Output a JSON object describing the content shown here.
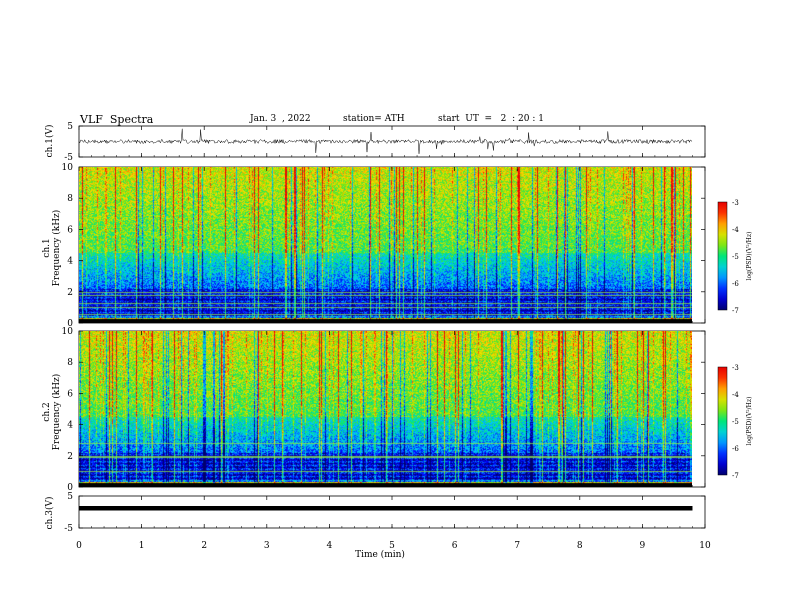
{
  "header": {
    "title": "VLF  Spectra",
    "date": "Jan. 3  , 2022",
    "station": "station= ATH",
    "start": "start  UT  =   2  : 20 : 1"
  },
  "chart_data": [
    {
      "name": "ch1-waveform",
      "type": "line",
      "ylabel": "ch.1(V)",
      "yticks": [
        "5",
        "-5"
      ],
      "ylim": [
        -5,
        5
      ]
    },
    {
      "name": "ch1-spectrogram",
      "type": "heatmap",
      "ylabel_line1": "ch.1",
      "ylabel_line2": "Frequency  (kHz)",
      "yticks": [
        "0",
        "2",
        "4",
        "6",
        "8",
        "10"
      ],
      "ylim": [
        0,
        10
      ],
      "colorbar": {
        "label": "log(PSD)(V²/Hz)",
        "ticks": [
          "-3",
          "-4",
          "-5",
          "-6",
          "-7"
        ],
        "range": [
          -7,
          -3
        ]
      }
    },
    {
      "name": "ch2-spectrogram",
      "type": "heatmap",
      "ylabel_line1": "ch.2",
      "ylabel_line2": "Frequency  (kHz)",
      "yticks": [
        "0",
        "2",
        "4",
        "6",
        "8",
        "10"
      ],
      "ylim": [
        0,
        10
      ],
      "colorbar": {
        "label": "log(PSD)(V²/Hz)",
        "ticks": [
          "-3",
          "-4",
          "-5",
          "-6",
          "-7"
        ],
        "range": [
          -7,
          -3
        ]
      }
    },
    {
      "name": "ch3-waveform",
      "type": "line",
      "ylabel": "ch.3(V)",
      "yticks": [
        "5",
        "-5"
      ],
      "ylim": [
        -5,
        5
      ]
    }
  ],
  "xaxis": {
    "xlabel": "Time  (min)",
    "xticks": [
      "0",
      "1",
      "2",
      "3",
      "4",
      "5",
      "6",
      "7",
      "8",
      "9",
      "10"
    ],
    "xlim": [
      0,
      10
    ],
    "data_end": 9.8
  }
}
